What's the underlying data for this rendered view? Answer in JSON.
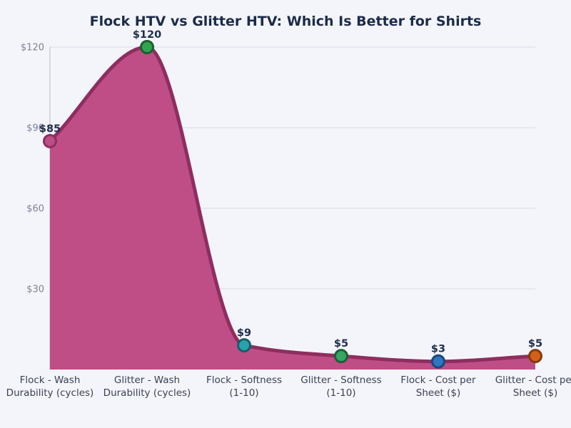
{
  "chart_data": {
    "type": "area",
    "title": "Flock HTV vs Glitter HTV: Which Is Better for Shirts",
    "categories": [
      "Flock - Wash Durability (cycles)",
      "Glitter - Wash Durability (cycles)",
      "Flock - Softness (1-10)",
      "Glitter - Softness (1-10)",
      "Flock - Cost per Sheet ($)",
      "Glitter - Cost per Sheet ($)"
    ],
    "category_lines": [
      [
        "Flock - Wash",
        "Durability (cycles)"
      ],
      [
        "Glitter - Wash",
        "Durability (cycles)"
      ],
      [
        "Flock - Softness",
        "(1-10)"
      ],
      [
        "Glitter - Softness",
        "(1-10)"
      ],
      [
        "Flock - Cost per",
        "Sheet ($)"
      ],
      [
        "Glitter - Cost per",
        "Sheet ($)"
      ]
    ],
    "values": [
      85,
      120,
      9,
      5,
      3,
      5
    ],
    "point_labels": [
      "$85",
      "$120",
      "$9",
      "$5",
      "$3",
      "$5"
    ],
    "y_ticks": [
      {
        "value": 120,
        "label": "$120"
      },
      {
        "value": 90,
        "label": "$90"
      },
      {
        "value": 60,
        "label": "$60"
      },
      {
        "value": 30,
        "label": "$30"
      }
    ],
    "ylim": [
      0,
      120
    ],
    "grid": true,
    "legend": "none",
    "line_shape": "monotone",
    "colors": {
      "background": "#f4f5fa",
      "area_fill": "#bf4e87",
      "line": "#8e2e5f",
      "grid": "#e0e4ed",
      "axis": "#c9cedb",
      "tick_label": "#7c8299",
      "x_label": "#3b4054",
      "data_label": "#1f2d4e",
      "title": "#1c2b4a",
      "points": [
        {
          "fill": "#bc4d86",
          "stroke": "#8e2e5f"
        },
        {
          "fill": "#31a44f",
          "stroke": "#1c5e30"
        },
        {
          "fill": "#27a2ae",
          "stroke": "#156069"
        },
        {
          "fill": "#36a562",
          "stroke": "#1d5e38"
        },
        {
          "fill": "#2d77c2",
          "stroke": "#1a477d"
        },
        {
          "fill": "#d26019",
          "stroke": "#86390d"
        }
      ]
    }
  }
}
